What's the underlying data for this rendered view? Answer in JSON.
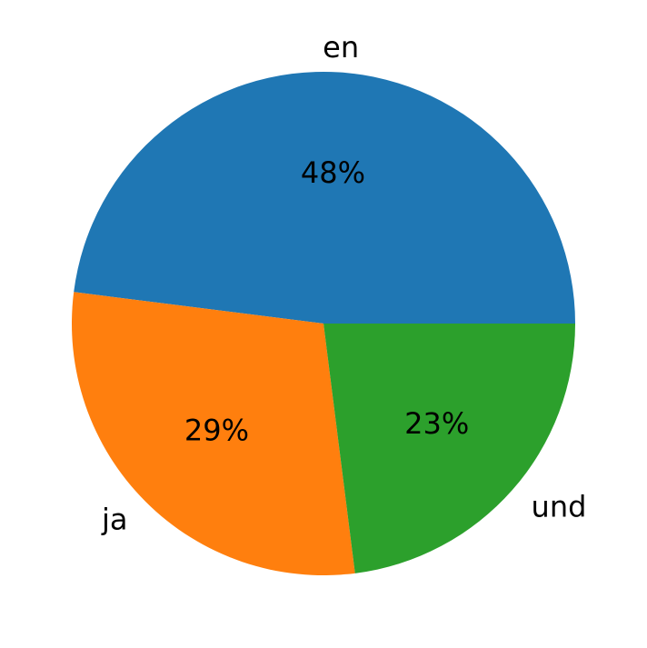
{
  "chart_data": {
    "type": "pie",
    "title": "",
    "start_angle_deg": 0,
    "direction": "counterclockwise",
    "slices": [
      {
        "label": "en",
        "value": 48,
        "pct_label": "48%",
        "color": "#1f77b4"
      },
      {
        "label": "ja",
        "value": 29,
        "pct_label": "29%",
        "color": "#ff7f0e"
      },
      {
        "label": "und",
        "value": 23,
        "pct_label": "23%",
        "color": "#2ca02c"
      }
    ]
  }
}
